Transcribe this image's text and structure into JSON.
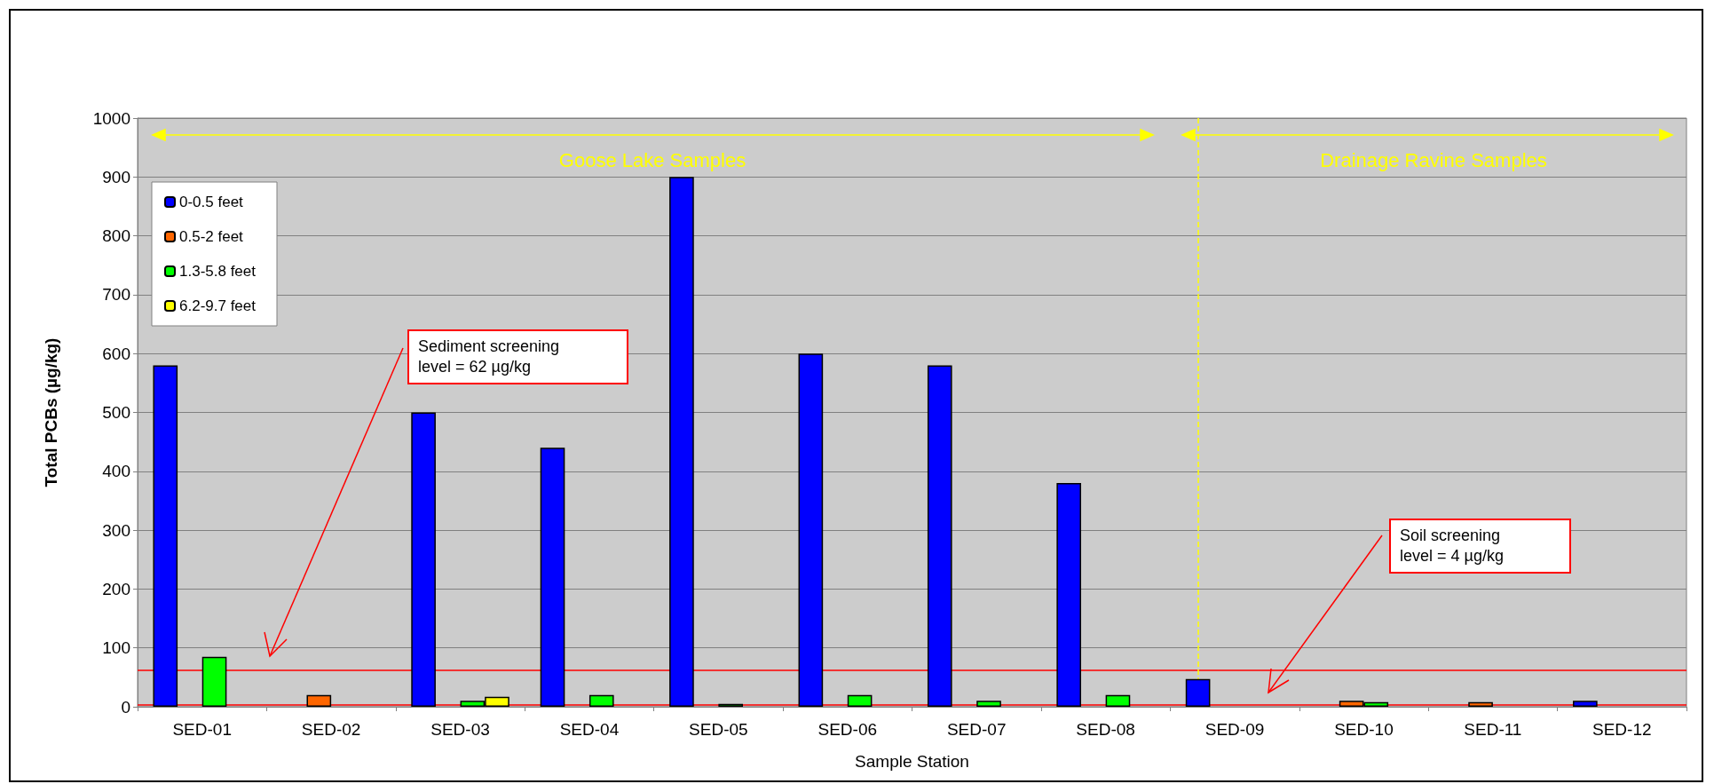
{
  "chart_data": {
    "type": "bar",
    "xlabel": "Sample Station",
    "ylabel": "Total PCBs (µg/kg)",
    "categories": [
      "SED-01",
      "SED-02",
      "SED-03",
      "SED-04",
      "SED-05",
      "SED-06",
      "SED-07",
      "SED-08",
      "SED-09",
      "SED-10",
      "SED-11",
      "SED-12"
    ],
    "series": [
      {
        "name": "0-0.5 feet",
        "color": "#0000ff",
        "values": [
          580,
          null,
          500,
          440,
          900,
          600,
          580,
          380,
          47,
          null,
          null,
          10
        ]
      },
      {
        "name": "0.5-2 feet",
        "color": "#ff6600",
        "values": [
          null,
          20,
          null,
          null,
          null,
          null,
          null,
          null,
          null,
          10,
          8,
          null
        ]
      },
      {
        "name": "1.3-5.8 feet",
        "color": "#00ff00",
        "values": [
          85,
          null,
          10,
          20,
          5,
          20,
          10,
          20,
          null,
          8,
          null,
          null
        ]
      },
      {
        "name": "6.2-9.7 feet",
        "color": "#ffff00",
        "values": [
          null,
          null,
          17,
          null,
          null,
          null,
          null,
          null,
          null,
          null,
          null,
          null
        ]
      }
    ],
    "ylim": [
      0,
      1000
    ],
    "yticks": [
      0,
      100,
      200,
      300,
      400,
      500,
      600,
      700,
      800,
      900,
      1000
    ],
    "grid": "y",
    "legend": "top left",
    "ref_lines": [
      {
        "axis": "y",
        "value": 62,
        "color": "#ff0000"
      },
      {
        "axis": "y",
        "value": 4,
        "color": "#ff0000"
      },
      {
        "axis": "x",
        "value": "SED-09",
        "color": "#ffff00",
        "line_style": "dashed"
      }
    ],
    "annotations": [
      "Goose Lake Samples",
      "Drainage Ravine Samples",
      "Sediment screening level = 62 µg/kg",
      "Soil screening level = 4 µg/kg"
    ]
  }
}
